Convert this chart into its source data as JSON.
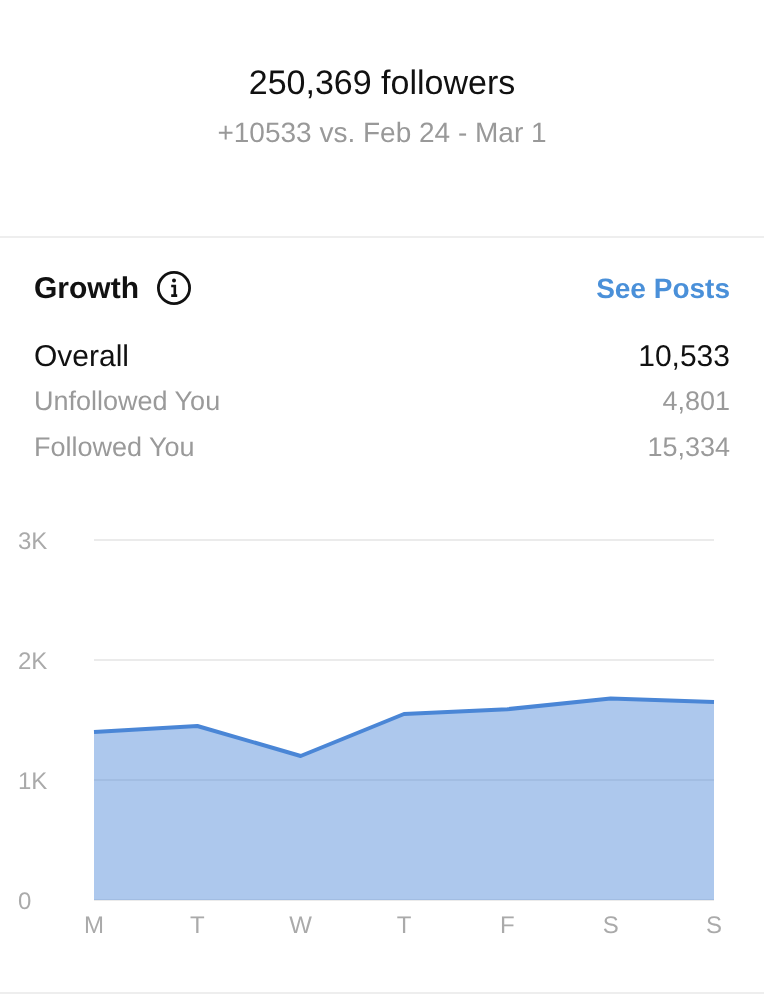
{
  "chart_data": {
    "type": "area",
    "title": "250,369 followers",
    "subtitle": "+10533 vs. Feb 24 - Mar 1",
    "annotations": [
      "Growth",
      "See Posts",
      "Overall",
      "10,533",
      "Unfollowed You",
      "4,801",
      "Followed You",
      "15,334"
    ],
    "categories": [
      "M",
      "T",
      "W",
      "T",
      "F",
      "S",
      "S"
    ],
    "series": [
      {
        "color": "#4a86d6",
        "values": [
          1400,
          1450,
          1200,
          1550,
          1590,
          1680,
          1650
        ]
      }
    ],
    "ylim": [
      0,
      3000
    ],
    "yticks": [
      {
        "value": 0,
        "label": "0"
      },
      {
        "value": 1000,
        "label": "1K"
      },
      {
        "value": 2000,
        "label": "2K"
      },
      {
        "value": 3000,
        "label": "3K"
      }
    ],
    "grid": "y",
    "legend": false,
    "marker": "none",
    "line_style": "solid"
  }
}
